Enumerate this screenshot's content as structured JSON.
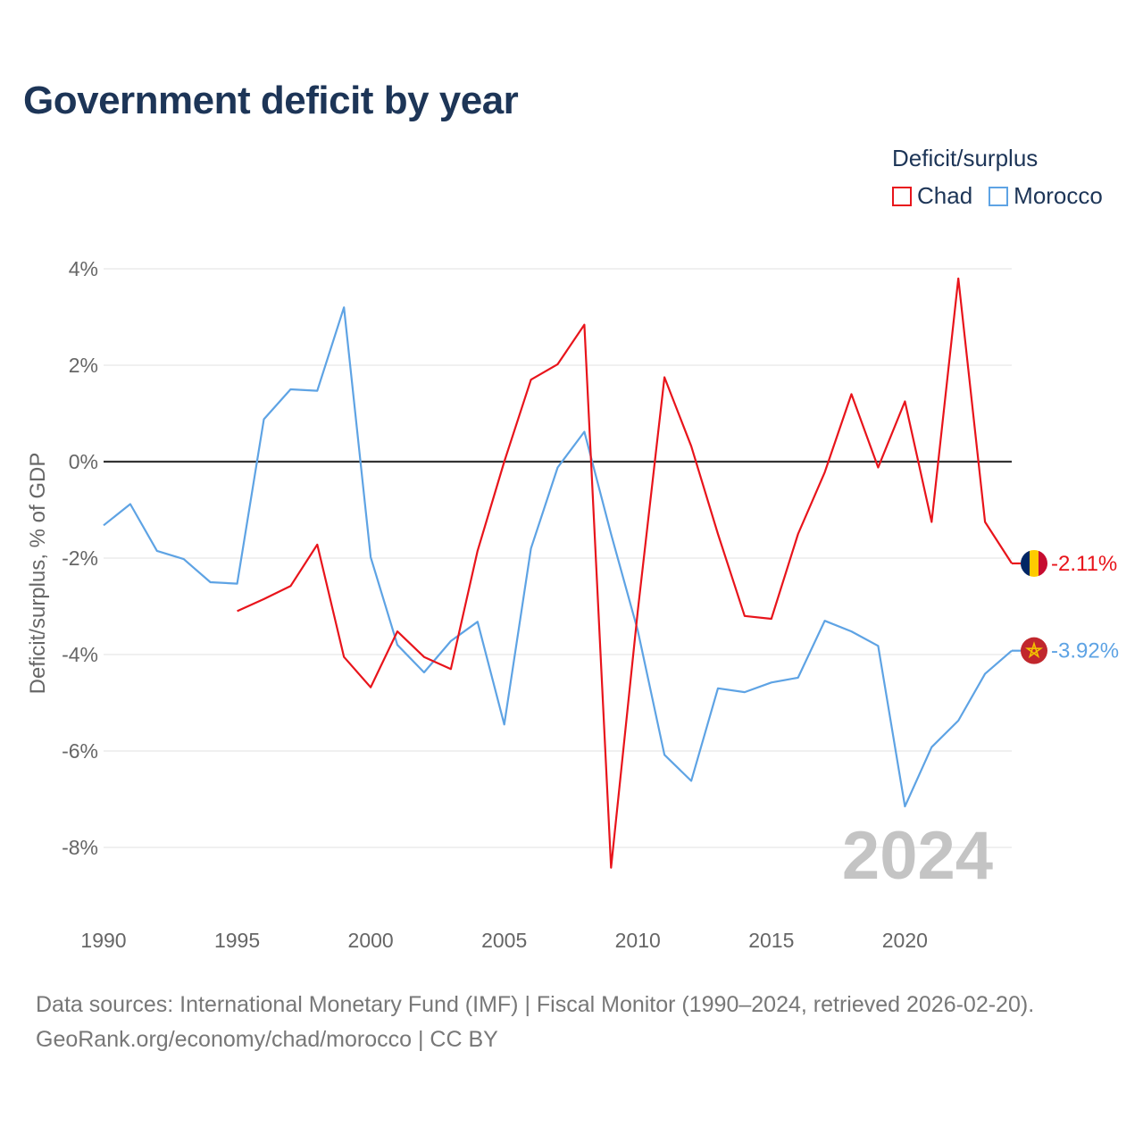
{
  "title": "Government deficit by year",
  "legend": {
    "title": "Deficit/surplus",
    "items": [
      {
        "name": "Chad",
        "color": "#e8141b"
      },
      {
        "name": "Morocco",
        "color": "#5ea3e4"
      }
    ]
  },
  "year_label": "2024",
  "footer": {
    "sources": "Data sources: International Monetary Fund (IMF) | Fiscal Monitor (1990–2024, retrieved 2026-02-20).",
    "credit": "GeoRank.org/economy/chad/morocco | CC BY"
  },
  "chart_data": {
    "type": "line",
    "title": "Government deficit by year",
    "xlabel": "",
    "ylabel": "Deficit/surplus, % of GDP",
    "xlim": [
      1990,
      2024
    ],
    "ylim": [
      -9,
      4
    ],
    "x_ticks": [
      1990,
      1995,
      2000,
      2005,
      2010,
      2015,
      2020
    ],
    "x_tick_labels": [
      "1990",
      "1995",
      "2000",
      "2005",
      "2010",
      "2015",
      "2020"
    ],
    "y_ticks": [
      4,
      2,
      0,
      -2,
      -4,
      -6,
      -8
    ],
    "y_tick_labels": [
      "4%",
      "2%",
      "0%",
      "-2%",
      "-4%",
      "-6%",
      "-8%"
    ],
    "grid": true,
    "legend_position": "top-right",
    "series": [
      {
        "name": "Chad",
        "color": "#e8141b",
        "end_label": "-2.11%",
        "points": [
          [
            1995,
            -3.1
          ],
          [
            1996,
            -2.85
          ],
          [
            1997,
            -2.58
          ],
          [
            1998,
            -1.72
          ],
          [
            1999,
            -4.05
          ],
          [
            2000,
            -4.68
          ],
          [
            2001,
            -3.52
          ],
          [
            2002,
            -4.05
          ],
          [
            2003,
            -4.3
          ],
          [
            2004,
            -1.85
          ],
          [
            2005,
            0.0
          ],
          [
            2006,
            1.7
          ],
          [
            2007,
            2.02
          ],
          [
            2008,
            2.84
          ],
          [
            2009,
            -8.42
          ],
          [
            2010,
            -3.1
          ],
          [
            2011,
            1.75
          ],
          [
            2012,
            0.32
          ],
          [
            2013,
            -1.5
          ],
          [
            2014,
            -3.2
          ],
          [
            2015,
            -3.26
          ],
          [
            2016,
            -1.5
          ],
          [
            2017,
            -0.22
          ],
          [
            2018,
            1.4
          ],
          [
            2019,
            -0.12
          ],
          [
            2020,
            1.25
          ],
          [
            2021,
            -1.25
          ],
          [
            2022,
            3.8
          ],
          [
            2023,
            -1.25
          ],
          [
            2024,
            -2.11
          ]
        ]
      },
      {
        "name": "Morocco",
        "color": "#5ea3e4",
        "end_label": "-3.92%",
        "points": [
          [
            1990,
            -1.32
          ],
          [
            1991,
            -0.88
          ],
          [
            1992,
            -1.85
          ],
          [
            1993,
            -2.02
          ],
          [
            1994,
            -2.5
          ],
          [
            1995,
            -2.53
          ],
          [
            1996,
            0.88
          ],
          [
            1997,
            1.5
          ],
          [
            1998,
            1.47
          ],
          [
            1999,
            3.2
          ],
          [
            2000,
            -1.98
          ],
          [
            2001,
            -3.8
          ],
          [
            2002,
            -4.37
          ],
          [
            2003,
            -3.72
          ],
          [
            2004,
            -3.32
          ],
          [
            2005,
            -5.45
          ],
          [
            2006,
            -1.8
          ],
          [
            2007,
            -0.12
          ],
          [
            2008,
            0.62
          ],
          [
            2009,
            -1.5
          ],
          [
            2010,
            -3.5
          ],
          [
            2011,
            -6.08
          ],
          [
            2012,
            -6.62
          ],
          [
            2013,
            -4.7
          ],
          [
            2014,
            -4.78
          ],
          [
            2015,
            -4.58
          ],
          [
            2016,
            -4.48
          ],
          [
            2017,
            -3.3
          ],
          [
            2018,
            -3.52
          ],
          [
            2019,
            -3.82
          ],
          [
            2020,
            -7.15
          ],
          [
            2021,
            -5.92
          ],
          [
            2022,
            -5.37
          ],
          [
            2023,
            -4.4
          ],
          [
            2024,
            -3.92
          ]
        ]
      }
    ]
  }
}
